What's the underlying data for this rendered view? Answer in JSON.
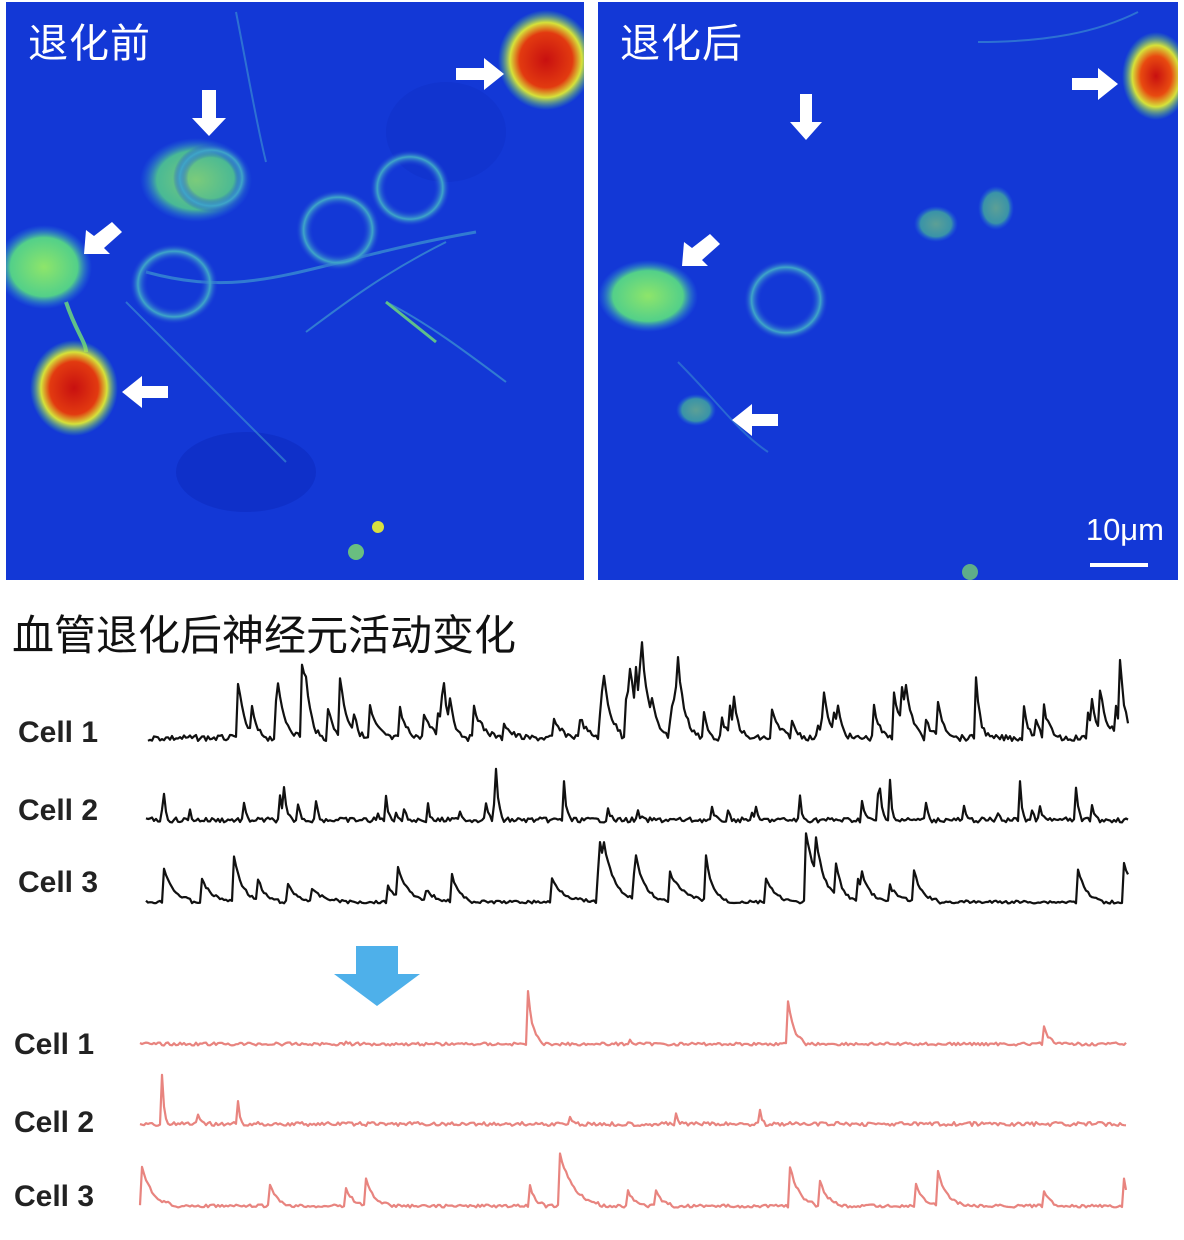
{
  "panels": {
    "before": {
      "label": "退化前"
    },
    "after": {
      "label": "退化后",
      "scale_bar_label": "10μm"
    }
  },
  "section_title": "血管退化后神经元活动变化",
  "trace_groups": [
    {
      "color": "#111111",
      "traces": [
        {
          "label": "Cell 1"
        },
        {
          "label": "Cell 2"
        },
        {
          "label": "Cell 3"
        }
      ]
    },
    {
      "color": "#e8847f",
      "traces": [
        {
          "label": "Cell 1"
        },
        {
          "label": "Cell 2"
        },
        {
          "label": "Cell 3"
        }
      ]
    }
  ],
  "colors": {
    "background_blue": "#1238d8",
    "signal_green": "#7fe06a",
    "signal_red": "#d81a12",
    "arrow_blue": "#4eb0ea",
    "before_trace": "#111111",
    "after_trace": "#e8847f"
  },
  "icons": {
    "transition_arrow": "down-arrow-icon",
    "cell_markers": "white-arrow-icon"
  }
}
